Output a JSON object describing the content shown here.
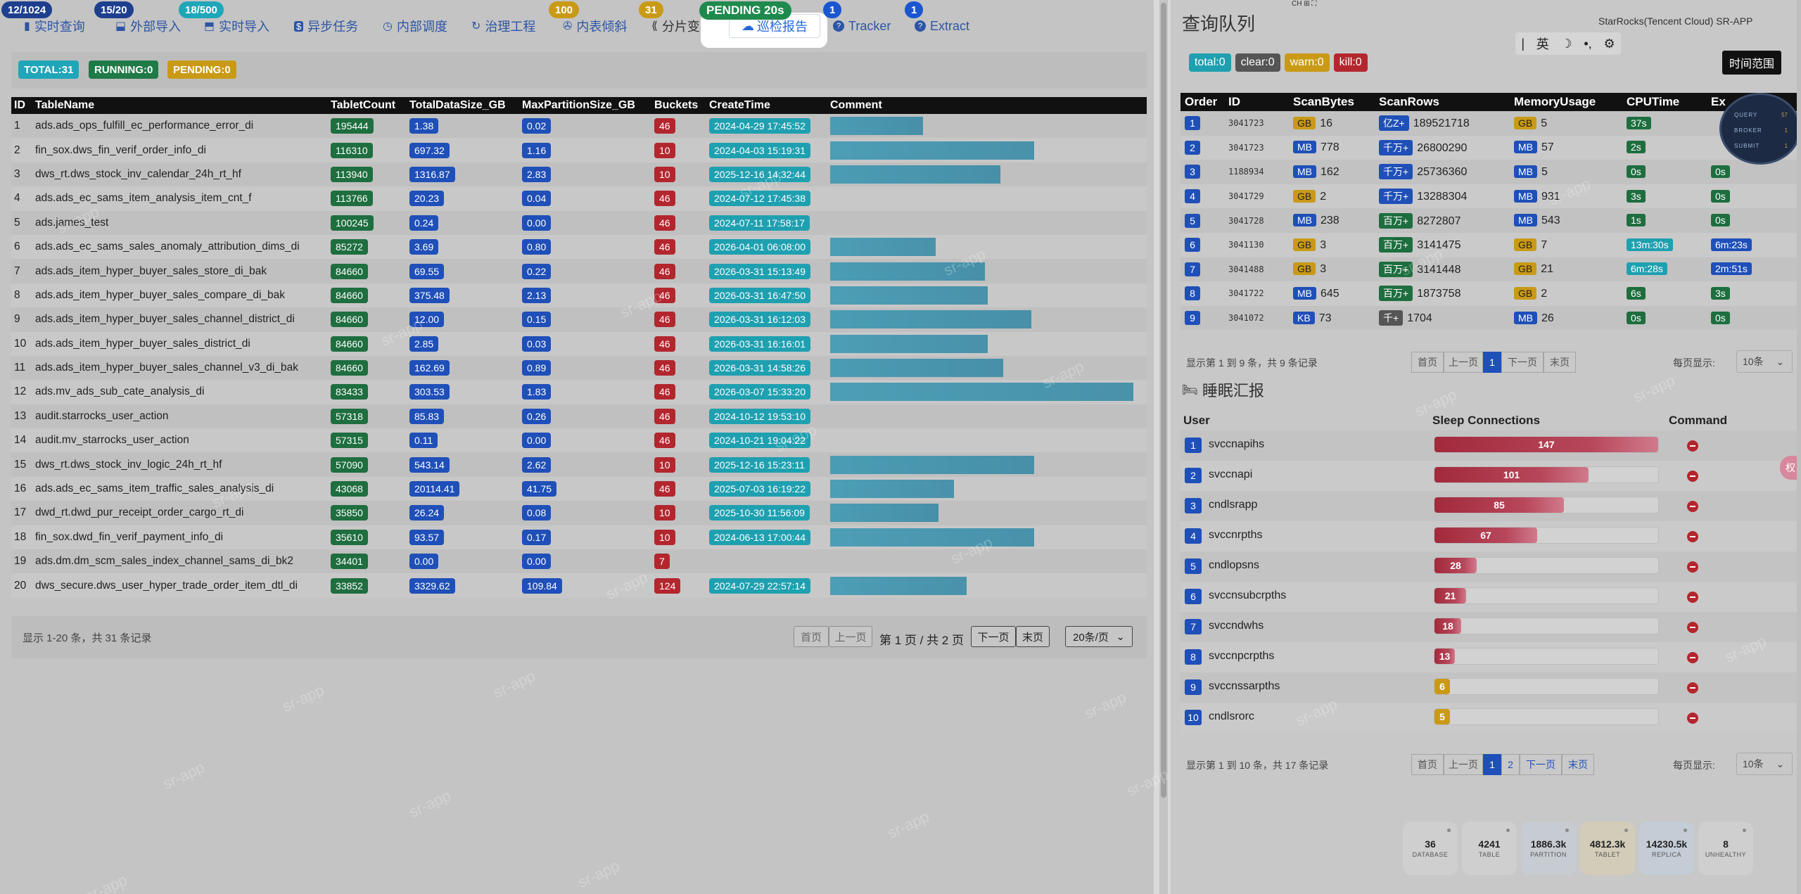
{
  "tabs": [
    {
      "label": "实时查询",
      "icon": "▮",
      "badge": "12/1024"
    },
    {
      "label": "外部导入",
      "icon": "⬓",
      "badge": "15/20"
    },
    {
      "label": "实时导入",
      "icon": "⬒",
      "badge": "18/500"
    },
    {
      "label": "异步任务",
      "icon": "$"
    },
    {
      "label": "内部调度",
      "icon": "◷"
    },
    {
      "label": "治理工程",
      "icon": "↻",
      "badge": "100"
    },
    {
      "label": "内表倾斜",
      "icon": "✇"
    },
    {
      "label": "分片变异",
      "icon": "⟪",
      "badge": "31"
    },
    {
      "label": "巡检报告",
      "icon": "☁"
    },
    {
      "label": "Tracker",
      "icon": "?",
      "badge": "1"
    },
    {
      "label": "Extract",
      "icon": "?",
      "badge": "1"
    }
  ],
  "pending_badge": "PENDING 20s",
  "left_stats": {
    "total": "TOTAL:31",
    "running": "RUNNING:0",
    "pending": "PENDING:0"
  },
  "main_table": {
    "headers": [
      "ID",
      "TableName",
      "TabletCount",
      "TotalDataSize_GB",
      "MaxPartitionSize_GB",
      "Buckets",
      "CreateTime",
      "Comment"
    ],
    "rows": [
      {
        "id": "1",
        "name": "ads.ads_ops_fulfill_ec_performance_error_di",
        "tablets": "195444",
        "total": "1.38",
        "max": "0.02",
        "buckets": "46",
        "created": "2024-04-29 17:45:52",
        "comment_fill": 0.3
      },
      {
        "id": "2",
        "name": "fin_sox.dws_fin_verif_order_info_di",
        "tablets": "116310",
        "total": "697.32",
        "max": "1.16",
        "buckets": "10",
        "created": "2024-04-03 15:19:31",
        "comment_fill": 0.66
      },
      {
        "id": "3",
        "name": "dws_rt.dws_stock_inv_calendar_24h_rt_hf",
        "tablets": "113940",
        "total": "1316.87",
        "max": "2.83",
        "buckets": "10",
        "created": "2025-12-16 14:32:44",
        "comment_fill": 0.55
      },
      {
        "id": "4",
        "name": "ads.ads_ec_sams_item_analysis_item_cnt_f",
        "tablets": "113766",
        "total": "20.23",
        "max": "0.04",
        "buckets": "46",
        "created": "2024-07-12 17:45:38",
        "comment_fill": 0.0
      },
      {
        "id": "5",
        "name": "ads.james_test",
        "tablets": "100245",
        "total": "0.24",
        "max": "0.00",
        "buckets": "46",
        "created": "2024-07-11 17:58:17",
        "comment_fill": 0.0
      },
      {
        "id": "6",
        "name": "ads.ads_ec_sams_sales_anomaly_attribution_dims_di",
        "tablets": "85272",
        "total": "3.69",
        "max": "0.80",
        "buckets": "46",
        "created": "2026-04-01 06:08:00",
        "comment_fill": 0.34
      },
      {
        "id": "7",
        "name": "ads.ads_item_hyper_buyer_sales_store_di_bak",
        "tablets": "84660",
        "total": "69.55",
        "max": "0.22",
        "buckets": "46",
        "created": "2026-03-31 15:13:49",
        "comment_fill": 0.5
      },
      {
        "id": "8",
        "name": "ads.ads_item_hyper_buyer_sales_compare_di_bak",
        "tablets": "84660",
        "total": "375.48",
        "max": "2.13",
        "buckets": "46",
        "created": "2026-03-31 16:47:50",
        "comment_fill": 0.51
      },
      {
        "id": "9",
        "name": "ads.ads_item_hyper_buyer_sales_channel_district_di",
        "tablets": "84660",
        "total": "12.00",
        "max": "0.15",
        "buckets": "46",
        "created": "2026-03-31 16:12:03",
        "comment_fill": 0.65
      },
      {
        "id": "10",
        "name": "ads.ads_item_hyper_buyer_sales_district_di",
        "tablets": "84660",
        "total": "2.85",
        "max": "0.03",
        "buckets": "46",
        "created": "2026-03-31 16:16:01",
        "comment_fill": 0.51
      },
      {
        "id": "11",
        "name": "ads.ads_item_hyper_buyer_sales_channel_v3_di_bak",
        "tablets": "84660",
        "total": "162.69",
        "max": "0.89",
        "buckets": "46",
        "created": "2026-03-31 14:58:26",
        "comment_fill": 0.56
      },
      {
        "id": "12",
        "name": "ads.mv_ads_sub_cate_analysis_di",
        "tablets": "83433",
        "total": "303.53",
        "max": "1.83",
        "buckets": "46",
        "created": "2026-03-07 15:33:20",
        "comment_fill": 0.98
      },
      {
        "id": "13",
        "name": "audit.starrocks_user_action",
        "tablets": "57318",
        "total": "85.83",
        "max": "0.26",
        "buckets": "46",
        "created": "2024-10-12 19:53:10",
        "comment_fill": 0.0
      },
      {
        "id": "14",
        "name": "audit.mv_starrocks_user_action",
        "tablets": "57315",
        "total": "0.11",
        "max": "0.00",
        "buckets": "46",
        "created": "2024-10-21 19:04:22",
        "comment_fill": 0.0
      },
      {
        "id": "15",
        "name": "dws_rt.dws_stock_inv_logic_24h_rt_hf",
        "tablets": "57090",
        "total": "543.14",
        "max": "2.62",
        "buckets": "10",
        "created": "2025-12-16 15:23:11",
        "comment_fill": 0.66
      },
      {
        "id": "16",
        "name": "ads.ads_ec_sams_item_traffic_sales_analysis_di",
        "tablets": "43068",
        "total": "20114.41",
        "max": "41.75",
        "buckets": "46",
        "created": "2025-07-03 16:19:22",
        "comment_fill": 0.4
      },
      {
        "id": "17",
        "name": "dwd_rt.dwd_pur_receipt_order_cargo_rt_di",
        "tablets": "35850",
        "total": "26.24",
        "max": "0.08",
        "buckets": "10",
        "created": "2025-10-30 11:56:09",
        "comment_fill": 0.35
      },
      {
        "id": "18",
        "name": "fin_sox.dwd_fin_verif_payment_info_di",
        "tablets": "35610",
        "total": "93.57",
        "max": "0.17",
        "buckets": "10",
        "created": "2024-06-13 17:00:44",
        "comment_fill": 0.66
      },
      {
        "id": "19",
        "name": "ads.dm.dm_scm_sales_index_channel_sams_di_bk2",
        "tablets": "34401",
        "total": "0.00",
        "max": "0.00",
        "buckets": "7",
        "created": "",
        "comment_fill": 0.0
      },
      {
        "id": "20",
        "name": "dws_secure.dws_user_hyper_trade_order_item_dtl_di",
        "tablets": "33852",
        "total": "3329.62",
        "max": "109.84",
        "buckets": "124",
        "created": "2024-07-29 22:57:14",
        "comment_fill": 0.44
      }
    ]
  },
  "left_pager": {
    "info": "显示 1-20 条，共 31 条记录",
    "first": "首页",
    "prev": "上一页",
    "page_text": "第 1 页 / 共 2 页",
    "next": "下一页",
    "last": "末页",
    "per_page": "20条/页"
  },
  "right": {
    "title": "查询队列",
    "instance": "StarRocks(Tencent Cloud) SR-APP",
    "ime": {
      "lang": "英"
    },
    "time_range_label": "时间范围",
    "badges": {
      "total": "total:0",
      "clear": "clear:0",
      "warn": "warn:0",
      "kill": "kill:0"
    },
    "queue_headers": [
      "Order",
      "ID",
      "ScanBytes",
      "ScanRows",
      "MemoryUsage",
      "CPUTime",
      "Ex"
    ],
    "queue_rows": [
      {
        "order": "1",
        "id": "3041723",
        "sb_unit": "GB",
        "sb": "16",
        "sr_unit": "亿Z+",
        "sr": "189521718",
        "mu_unit": "GB",
        "mu": "5",
        "cpu": "37s",
        "ex": ""
      },
      {
        "order": "2",
        "id": "3041723",
        "sb_unit": "MB",
        "sb": "778",
        "sr_unit": "千万+",
        "sr": "26800290",
        "mu_unit": "MB",
        "mu": "57",
        "cpu": "2s",
        "ex": ""
      },
      {
        "order": "3",
        "id": "1188934",
        "sb_unit": "MB",
        "sb": "162",
        "sr_unit": "千万+",
        "sr": "25736360",
        "mu_unit": "MB",
        "mu": "5",
        "cpu": "0s",
        "ex": "0s"
      },
      {
        "order": "4",
        "id": "3041729",
        "sb_unit": "GB",
        "sb": "2",
        "sr_unit": "千万+",
        "sr": "13288304",
        "mu_unit": "MB",
        "mu": "931",
        "cpu": "3s",
        "ex": "0s"
      },
      {
        "order": "5",
        "id": "3041728",
        "sb_unit": "MB",
        "sb": "238",
        "sr_unit": "百万+",
        "sr": "8272807",
        "mu_unit": "MB",
        "mu": "543",
        "cpu": "1s",
        "ex": "0s"
      },
      {
        "order": "6",
        "id": "3041130",
        "sb_unit": "GB",
        "sb": "3",
        "sr_unit": "百万+",
        "sr": "3141475",
        "mu_unit": "GB",
        "mu": "7",
        "cpu": "13m:30s",
        "ex": "6m:23s"
      },
      {
        "order": "7",
        "id": "3041488",
        "sb_unit": "GB",
        "sb": "3",
        "sr_unit": "百万+",
        "sr": "3141448",
        "mu_unit": "GB",
        "mu": "21",
        "cpu": "6m:28s",
        "ex": "2m:51s"
      },
      {
        "order": "8",
        "id": "3041722",
        "sb_unit": "MB",
        "sb": "645",
        "sr_unit": "百万+",
        "sr": "1873758",
        "mu_unit": "GB",
        "mu": "2",
        "cpu": "6s",
        "ex": "3s"
      },
      {
        "order": "9",
        "id": "3041072",
        "sb_unit": "KB",
        "sb": "73",
        "sr_unit": "千+",
        "sr": "1704",
        "mu_unit": "MB",
        "mu": "26",
        "cpu": "0s",
        "ex": "0s"
      }
    ],
    "gauge": [
      {
        "label": "QUERY",
        "value": "57"
      },
      {
        "label": "BROKER",
        "value": "1"
      },
      {
        "label": "SUBMIT",
        "value": "1"
      }
    ],
    "queue_pager": {
      "info": "显示第 1 到 9 条，共 9 条记录",
      "first": "首页",
      "prev": "上一页",
      "page1": "1",
      "next": "下一页",
      "last": "末页",
      "per_label": "每页显示:",
      "per_value": "10条"
    },
    "sleep_title": "睡眠汇报",
    "sleep_headers": {
      "user": "User",
      "conns": "Sleep Connections",
      "cmd": "Command"
    },
    "sleep_rows": [
      {
        "n": "1",
        "user": "svccnapihs",
        "count": "147",
        "frac": 1.0,
        "color": "red"
      },
      {
        "n": "2",
        "user": "svccnapi",
        "count": "101",
        "frac": 0.69,
        "color": "red"
      },
      {
        "n": "3",
        "user": "cndlsrapp",
        "count": "85",
        "frac": 0.58,
        "color": "red"
      },
      {
        "n": "4",
        "user": "svccnrpths",
        "count": "67",
        "frac": 0.46,
        "color": "red"
      },
      {
        "n": "5",
        "user": "cndlopsns",
        "count": "28",
        "frac": 0.19,
        "color": "red"
      },
      {
        "n": "6",
        "user": "svccnsubcrpths",
        "count": "21",
        "frac": 0.14,
        "color": "red"
      },
      {
        "n": "7",
        "user": "svccndwhs",
        "count": "18",
        "frac": 0.12,
        "color": "red"
      },
      {
        "n": "8",
        "user": "svccnpcrpths",
        "count": "13",
        "frac": 0.09,
        "color": "red"
      },
      {
        "n": "9",
        "user": "svccnssarpths",
        "count": "6",
        "frac": 0.04,
        "color": "amber"
      },
      {
        "n": "10",
        "user": "cndlsrorc",
        "count": "5",
        "frac": 0.03,
        "color": "amber"
      }
    ],
    "sleep_pager": {
      "info": "显示第 1 到 10 条，共 17 条记录",
      "first": "首页",
      "prev": "上一页",
      "page1": "1",
      "page2": "2",
      "next": "下一页",
      "last": "末页",
      "per_label": "每页显示:",
      "per_value": "10条"
    },
    "stat_cards": [
      {
        "value": "36",
        "label": "DATABASE"
      },
      {
        "value": "4241",
        "label": "TABLE"
      },
      {
        "value": "1886.3k",
        "label": "PARTITION"
      },
      {
        "value": "4812.3k",
        "label": "TABLET"
      },
      {
        "value": "14230.5k",
        "label": "REPLICA"
      },
      {
        "value": "8",
        "label": "UNHEALTHY"
      }
    ],
    "side_float": "权"
  },
  "watermark": "sr-app"
}
